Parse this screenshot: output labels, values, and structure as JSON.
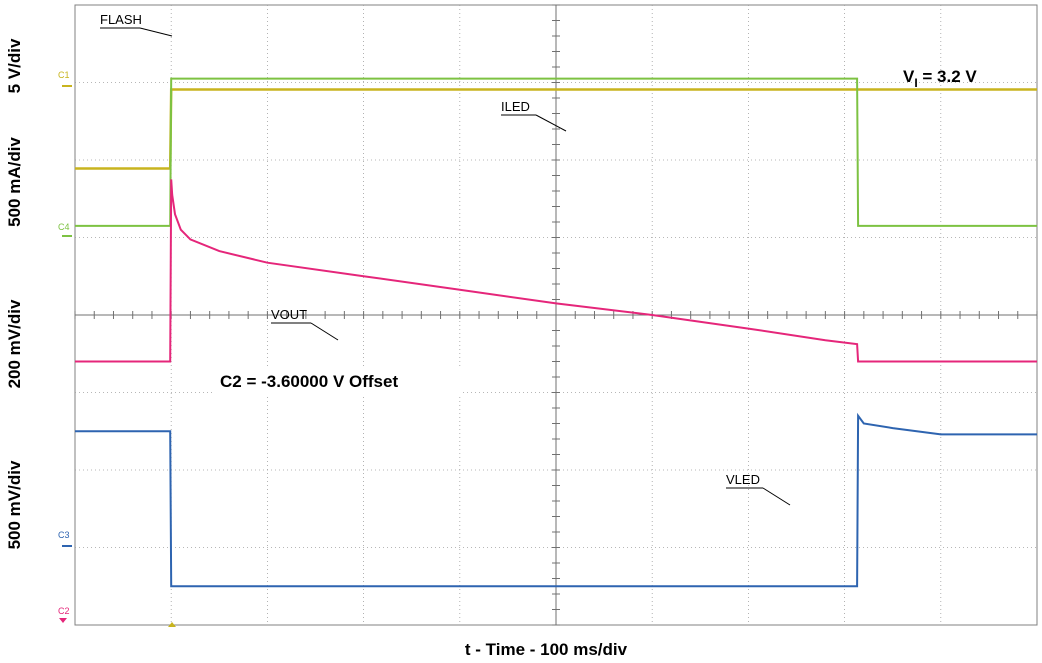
{
  "chart_data": {
    "type": "line",
    "title": "",
    "xlabel": "t - Time - 100 ms/div",
    "xlim": [
      0,
      1000
    ],
    "x_unit": "ms",
    "y_divisions": 8,
    "x_divisions": 10,
    "grid": true,
    "ylabels": [
      "5 V/div",
      "500 mA/div",
      "200 mV/div",
      "500 mV/div"
    ],
    "annotations": {
      "vi_main": "V",
      "vi_sub": "I",
      "vi_rest": " = 3.2 V",
      "offset": "C2 =  -3.60000 V Offset"
    },
    "markers": {
      "c1": "C1",
      "c4": "C4",
      "c3": "C3",
      "c2": "C2"
    },
    "colors": {
      "flash": "#c8b41e",
      "iled": "#7dc242",
      "vout": "#e5267a",
      "vled": "#2e64b0",
      "grid": "#a0a0a0"
    },
    "series": [
      {
        "name": "FLASH",
        "unit": "V",
        "x": [
          0,
          99,
          100,
          1000
        ],
        "y": [
          -0.3,
          -0.3,
          4.8,
          4.8
        ]
      },
      {
        "name": "ILED",
        "unit": "mA",
        "x": [
          0,
          99,
          100,
          813,
          814,
          1000
        ],
        "y": [
          0,
          0,
          950,
          950,
          0,
          0
        ]
      },
      {
        "name": "VOUT",
        "unit": "mV",
        "x": [
          0,
          99,
          100,
          101,
          104,
          110,
          120,
          150,
          200,
          300,
          400,
          500,
          600,
          700,
          780,
          813,
          814,
          1000
        ],
        "y": [
          0,
          0,
          470,
          430,
          380,
          340,
          315,
          285,
          255,
          220,
          185,
          150,
          120,
          85,
          55,
          45,
          0,
          0
        ]
      },
      {
        "name": "VLED",
        "unit": "V",
        "x": [
          0,
          99,
          100,
          813,
          814,
          820,
          850,
          900,
          1000
        ],
        "y": [
          0,
          0,
          -1.0,
          -1.0,
          0.1,
          0.05,
          0.02,
          -0.02,
          -0.02
        ]
      }
    ]
  }
}
